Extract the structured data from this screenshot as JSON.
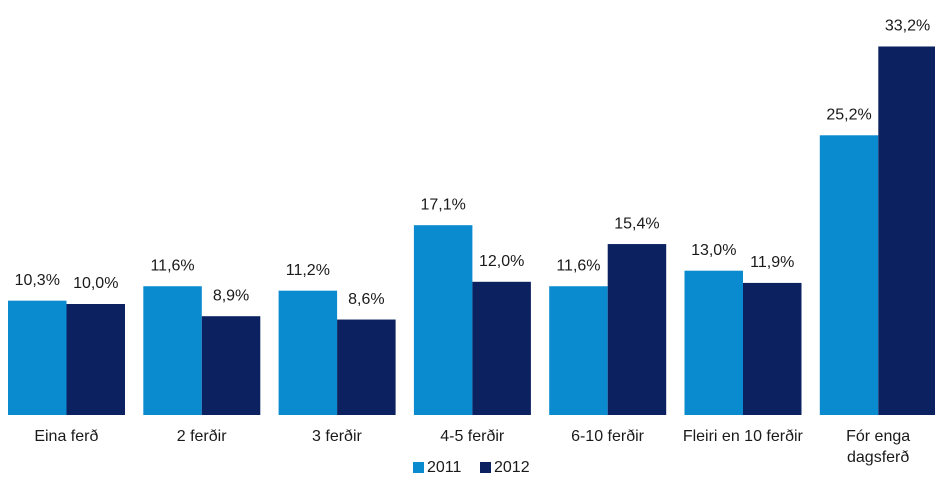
{
  "chart_data": {
    "type": "bar",
    "categories": [
      "Eina ferð",
      "2 ferðir",
      "3 ferðir",
      "4-5 ferðir",
      "6-10 ferðir",
      "Fleiri en 10 ferðir",
      "Fór enga\ndagsferð"
    ],
    "series": [
      {
        "name": "2011",
        "color": "#0a8bcf",
        "values": [
          10.3,
          11.6,
          11.2,
          17.1,
          11.6,
          13.0,
          25.2
        ],
        "value_labels": [
          "10,3%",
          "11,6%",
          "11,2%",
          "17,1%",
          "11,6%",
          "13,0%",
          "25,2%"
        ]
      },
      {
        "name": "2012",
        "color": "#0b2160",
        "values": [
          10.0,
          8.9,
          8.6,
          12.0,
          15.4,
          11.9,
          33.2
        ],
        "value_labels": [
          "10,0%",
          "8,9%",
          "8,6%",
          "12,0%",
          "15,4%",
          "11,9%",
          "33,2%"
        ]
      }
    ],
    "legend": "bottom"
  }
}
